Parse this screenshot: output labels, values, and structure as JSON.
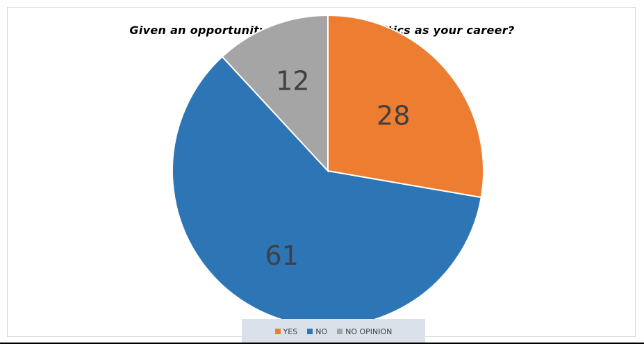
{
  "chart_data": {
    "type": "pie",
    "title": "Given an opportunity will you make politics as your career?",
    "categories": [
      "YES",
      "NO",
      "NO OPINION"
    ],
    "values": [
      28,
      61,
      12
    ],
    "colors": [
      "#ed7d31",
      "#2e75b6",
      "#a5a5a5"
    ],
    "data_labels": [
      "28",
      "61",
      "12"
    ],
    "legend_position": "bottom"
  }
}
